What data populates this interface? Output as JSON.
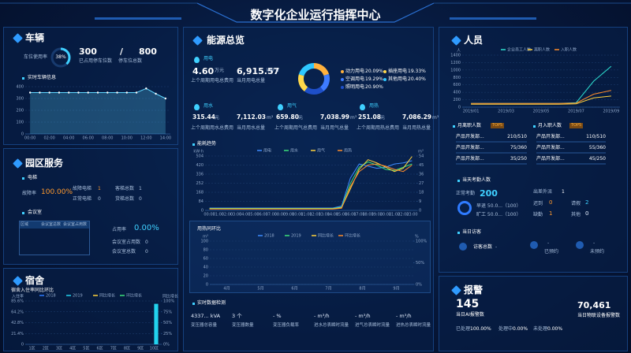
{
  "header": {
    "title": "数字化企业运行指挥中心"
  },
  "vehicle": {
    "title": "车辆",
    "usage_label": "车位使用率",
    "usage": {
      "value": 38,
      "label": "38%"
    },
    "used": "300",
    "used_label": "已占用停车位数",
    "sep": "/",
    "total": "800",
    "total_label": "停车位总数",
    "realtime_title": "实时车辆信息"
  },
  "park": {
    "title": "园区服务",
    "elevator_title": "电梯",
    "fault_rate_label": "故障率",
    "fault_rate": "100.00%",
    "fault_label": "故障电梯",
    "fault": "1",
    "normal_label": "正常电梯",
    "normal": "0",
    "passenger_label": "客梯总数",
    "passenger": "1",
    "freight_label": "货梯总数",
    "freight": "0",
    "meeting_title": "会议室",
    "table_headers": [
      "区域",
      "会议室总数",
      "会议室占用数"
    ],
    "occupancy_label": "占用率",
    "occupancy": "0.00%",
    "occupied_label": "会议室占用数",
    "occupied": "0",
    "rooms_label": "会议室总数",
    "rooms": "0"
  },
  "dorm": {
    "title": "宿舍",
    "chart_title": "宿舍入住率同比环比"
  },
  "energy": {
    "title": "能源总览",
    "electric": {
      "title": "用电",
      "cost": "4.60",
      "cost_unit": "万元",
      "amount": "6,915.57",
      "amount_unit": "kW·h",
      "cost_label": "上个周期用电总费用",
      "amount_label": "当月用电总量"
    },
    "water": {
      "title": "用水",
      "cost": "315.44",
      "cost_unit": "元",
      "amount": "7,112.03",
      "amount_unit": "m³",
      "cost_label": "上个周期用水总费用",
      "amount_label": "当月用水总量"
    },
    "gas": {
      "title": "用气",
      "cost": "659.80",
      "cost_unit": "元",
      "amount": "7,038.99",
      "amount_unit": "m³",
      "cost_label": "上个周期用气总费用",
      "amount_label": "当月用气总量"
    },
    "heat": {
      "title": "用热",
      "cost": "251.08",
      "cost_unit": "元",
      "amount": "7,086.29",
      "amount_unit": "m³",
      "cost_label": "上个周期用热总费用",
      "amount_label": "当月用热总量"
    },
    "trend_title": "能耗趋势",
    "heat_title": "用热同环比",
    "monitor_title": "实时数据检测",
    "monitor": [
      {
        "value": "4337... kVA",
        "label": "变压器总容量"
      },
      {
        "value": "3 个",
        "label": "变压器数量"
      },
      {
        "value": "- %",
        "label": "变压器负载率"
      },
      {
        "value": "- m³/h",
        "label": "进水总表瞬时流量"
      },
      {
        "value": "- m³/h",
        "label": "进气总表瞬时流量"
      },
      {
        "value": "- m³/h",
        "label": "进热总表瞬时流量"
      }
    ]
  },
  "staff": {
    "title": "人员",
    "leave_title": "月离职人数",
    "join_title": "月入职人数",
    "badge": "TOP5",
    "leave_rows": [
      [
        "产品开发部...",
        "210/510"
      ],
      [
        "产品开发部...",
        "75/360"
      ],
      [
        "产品开发部...",
        "35/250"
      ]
    ],
    "join_rows": [
      [
        "产品开发部...",
        "110/510"
      ],
      [
        "产品开发部...",
        "55/360"
      ],
      [
        "产品开发部...",
        "45/250"
      ]
    ],
    "attendance_title": "当天考勤人数",
    "normal_label": "正常考勤",
    "normal": "200",
    "early_label": "早退 50.0...（100）",
    "absent_ratio_label": "旷工 50.0...（100）",
    "trip_label": "出差外派",
    "trip": "1",
    "late_label": "迟到",
    "late": "0",
    "leave_label": "请假",
    "leave": "2",
    "absence_label": "缺勤",
    "absence": "1",
    "other_label": "其他",
    "other": "0",
    "visitor_title": "当日访客",
    "visitor_total_label": "访客总数",
    "visitor_total": "-",
    "booked": "-",
    "booked_label": "已预约",
    "unbooked": "-",
    "unbooked_label": "未预约"
  },
  "alarm": {
    "title": "报警",
    "ai": "145",
    "ai_label": "当日AI报警数",
    "iot": "70,461",
    "iot_label": "当日物联设备报警数",
    "done_label": "已处理",
    "done": "100.00%",
    "doing_label": "处理中",
    "doing": "0.00%",
    "todo_label": "未处理",
    "todo": "0.00%"
  },
  "chart_data": [
    {
      "type": "line",
      "area": true,
      "markers": true,
      "color": "#5fd6ff",
      "categories": [
        "00:00",
        null,
        "02:00",
        null,
        "04:00",
        null,
        "06:00",
        null,
        "08:00",
        null,
        "10:00",
        null,
        "12:00",
        null,
        "14:00"
      ],
      "values": [
        350,
        350,
        350,
        350,
        350,
        350,
        350,
        350,
        350,
        350,
        350,
        350,
        385,
        340,
        300
      ],
      "ylim": [
        0,
        400
      ],
      "yticks": [
        0,
        100,
        200,
        300,
        400
      ],
      "grid": true
    },
    {
      "type": "pie",
      "categories": [
        "动力用电",
        "空调用电",
        "照明用电",
        "插座用电",
        "其他用电"
      ],
      "values": [
        20.09,
        19.29,
        20.9,
        19.33,
        20.4
      ],
      "value_labels": [
        "20.09%",
        "19.29%",
        "20.90%",
        "19.33%",
        "20.40%"
      ],
      "colors": [
        "#ffb13d",
        "#3d7bff",
        "#1e4fc8",
        "#ffd84a",
        "#2ec7ff"
      ]
    },
    {
      "type": "line",
      "y_label": "kW·h",
      "y2_label": "m³",
      "categories": [
        "00:00",
        "01:00",
        "02:00",
        "03:00",
        "04:00",
        "05:00",
        "06:00",
        "07:00",
        "08:00",
        "09:00",
        "10:00",
        "11:00",
        "12:00",
        "13:00",
        "14:00",
        "15:00",
        "16:00",
        "17:00",
        "18:00",
        "19:00",
        "20:00",
        "21:00",
        "22:00",
        "23:00"
      ],
      "series": [
        {
          "name": "用电",
          "color": "#3d8bff",
          "values": [
            22,
            22,
            22,
            22,
            22,
            22,
            22,
            22,
            22,
            22,
            22,
            22,
            22,
            22,
            22,
            40,
            300,
            430,
            410,
            390,
            400,
            430,
            440,
            460
          ]
        },
        {
          "name": "用水",
          "color": "#3ce07a",
          "values": [
            18,
            18,
            18,
            18,
            18,
            18,
            18,
            18,
            18,
            18,
            18,
            18,
            18,
            18,
            18,
            30,
            250,
            400,
            450,
            420,
            380,
            370,
            400,
            430
          ]
        },
        {
          "name": "用气",
          "color": "#ffd23c",
          "values": [
            15,
            15,
            15,
            15,
            15,
            15,
            15,
            15,
            15,
            15,
            15,
            15,
            15,
            15,
            15,
            25,
            200,
            380,
            470,
            440,
            400,
            360,
            390,
            500
          ]
        },
        {
          "name": "用热",
          "color": "#ff8c2b",
          "values": [
            12,
            12,
            12,
            12,
            12,
            12,
            12,
            12,
            12,
            12,
            12,
            12,
            12,
            12,
            12,
            20,
            220,
            360,
            420,
            430,
            410,
            380,
            360,
            420
          ]
        }
      ],
      "ylim": [
        0,
        504
      ],
      "yticks": [
        0,
        84,
        168,
        252,
        336,
        420,
        504
      ],
      "y2lim": [
        0,
        54
      ],
      "y2ticks": [
        0,
        9,
        18,
        27,
        36,
        45,
        54
      ],
      "grid": true
    },
    {
      "type": "line",
      "y_label": "m³",
      "y2_label": "%",
      "categories": [
        "4月",
        "5月",
        "6月",
        "7月",
        "8月",
        "9月"
      ],
      "series": [
        {
          "name": "2018",
          "color": "#3d8bff",
          "values": [
            null,
            null,
            null,
            null,
            null,
            null
          ]
        },
        {
          "name": "2019",
          "color": "#3ce07a",
          "values": [
            null,
            null,
            null,
            null,
            null,
            null
          ]
        },
        {
          "name": "同比增长",
          "color": "#ffd23c",
          "axis": "y2",
          "values": [
            null,
            null,
            null,
            null,
            null,
            null
          ]
        },
        {
          "name": "环比增长",
          "color": "#ff8c2b",
          "axis": "y2",
          "values": [
            null,
            null,
            null,
            null,
            null,
            null
          ]
        }
      ],
      "ylim": [
        0,
        100
      ],
      "yticks": [
        0,
        20,
        40,
        60,
        80,
        100
      ],
      "y2lim": [
        0,
        100
      ],
      "y2ticks": [
        {
          "value": 0,
          "label": "0%"
        },
        {
          "value": 50,
          "label": "50%"
        },
        {
          "value": 100,
          "label": "100%"
        }
      ],
      "grid": true
    },
    {
      "type": "line",
      "y_label": "人",
      "categories": [
        "2019/01",
        null,
        "2019/03",
        null,
        "2019/05",
        null,
        "2019/07",
        null,
        "2019/09"
      ],
      "series": [
        {
          "name": "企业员工人数",
          "color": "#2ee0d0",
          "values": [
            100,
            100,
            100,
            100,
            100,
            100,
            120,
            700,
            1100
          ]
        },
        {
          "name": "离职人数",
          "color": "#ffd23c",
          "values": [
            80,
            80,
            80,
            80,
            80,
            80,
            90,
            250,
            300
          ]
        },
        {
          "name": "入职人数",
          "color": "#ff8c2b",
          "values": [
            100,
            100,
            100,
            100,
            100,
            100,
            110,
            350,
            450
          ]
        }
      ],
      "ylim": [
        0,
        1400
      ],
      "yticks": [
        0,
        200,
        400,
        600,
        800,
        1000,
        1200,
        1400
      ],
      "grid": true
    },
    {
      "type": "line",
      "y_label": "入住率",
      "y2_label": "同比增长",
      "categories": [
        "1区",
        "2区",
        "3区",
        "4区",
        "5区",
        "6区",
        "7区",
        "8区",
        "9区",
        "10区"
      ],
      "series": [
        {
          "name": "2018",
          "type": "bar",
          "color": "#2f7bff",
          "values": [
            0,
            0,
            0,
            0,
            0,
            0,
            0,
            0,
            0,
            0
          ]
        },
        {
          "name": "2019",
          "type": "bar",
          "color": "#22d3ee",
          "values": [
            0,
            0,
            0,
            0,
            0,
            0,
            0,
            0,
            0,
            80
          ]
        },
        {
          "name": "同比增长",
          "color": "#ffd23c",
          "axis": "y2",
          "values": [
            null,
            null,
            null,
            null,
            null,
            null,
            null,
            null,
            null,
            null
          ]
        },
        {
          "name": "环比增长",
          "color": "#3ce07a",
          "axis": "y2",
          "values": [
            null,
            null,
            null,
            null,
            null,
            null,
            null,
            null,
            null,
            null
          ]
        }
      ],
      "ylim": [
        0,
        85.6
      ],
      "yticks": [
        0,
        {
          "value": 21.4,
          "label": "21.4%"
        },
        {
          "value": 42.8,
          "label": "42.8%"
        },
        {
          "value": 64.2,
          "label": "64.2%"
        },
        {
          "value": 85.6,
          "label": "85.6%"
        }
      ],
      "y2lim": [
        0,
        100
      ],
      "y2ticks": [
        {
          "value": 0,
          "label": "0%"
        },
        {
          "value": 25,
          "label": "25%"
        },
        {
          "value": 50,
          "label": "50%"
        },
        {
          "value": 75,
          "label": "75%"
        },
        {
          "value": 100,
          "label": "100%"
        }
      ],
      "grid": true
    }
  ]
}
